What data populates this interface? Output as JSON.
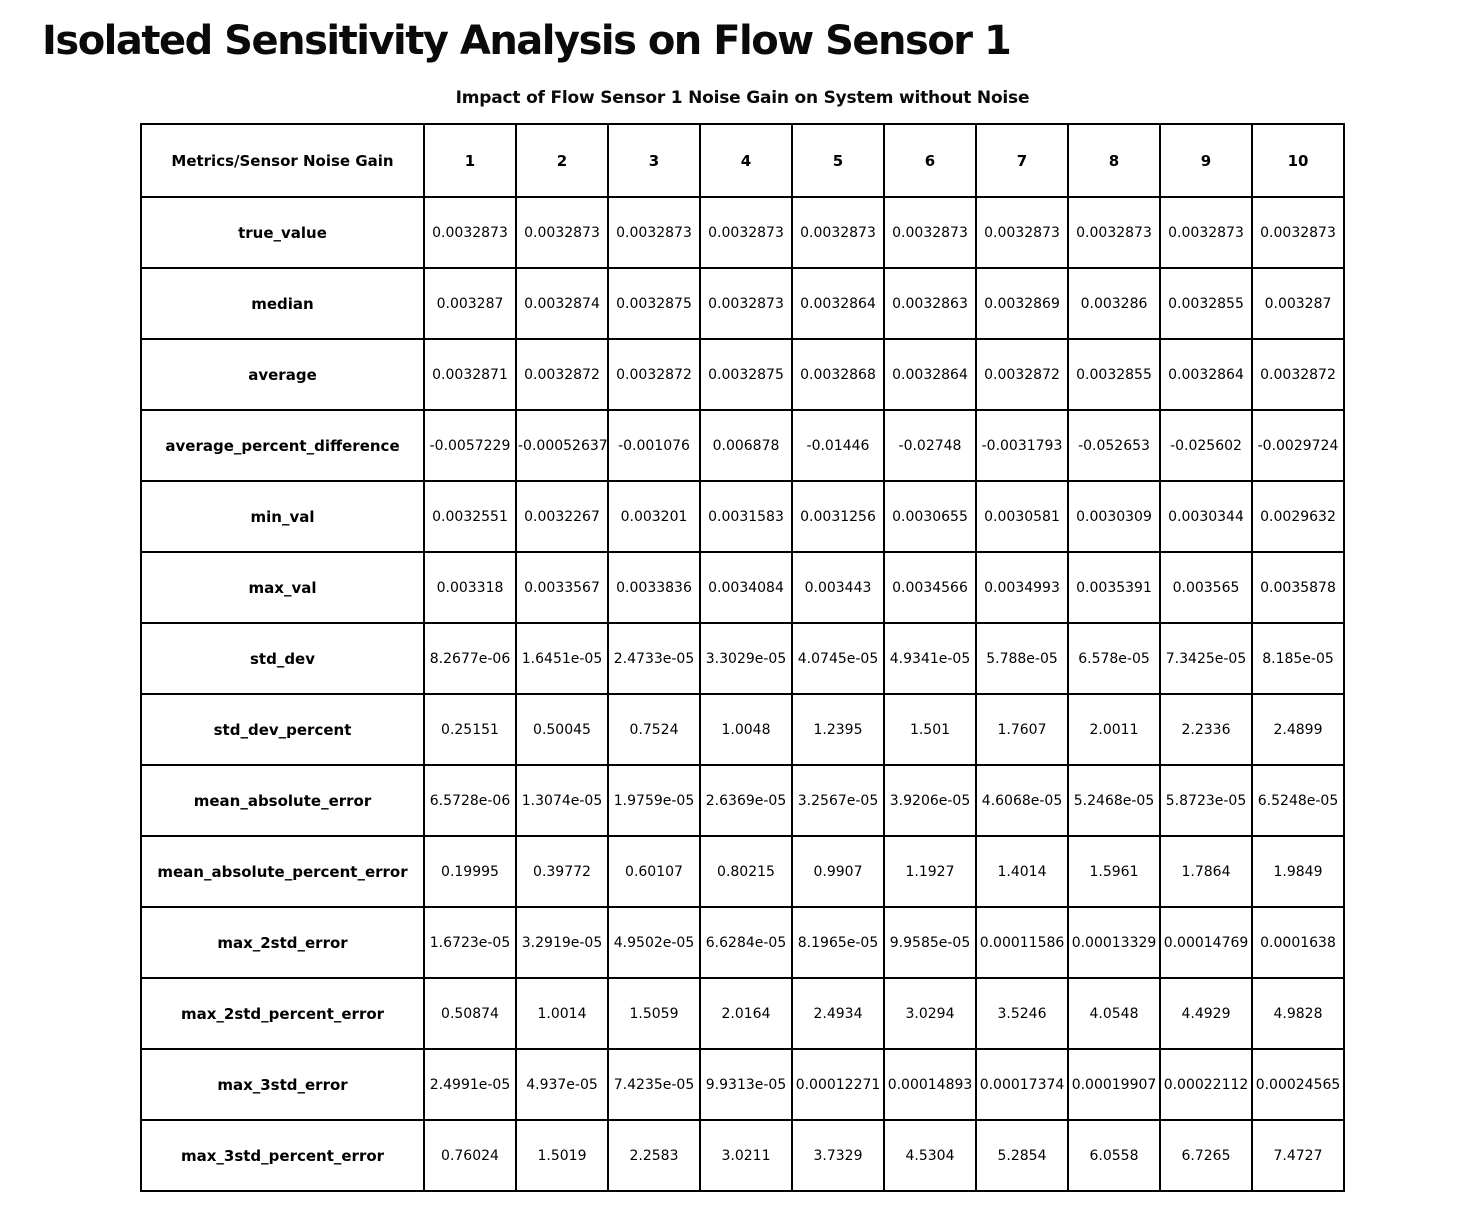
{
  "page": {
    "title": "Isolated Sensitivity Analysis on Flow Sensor 1",
    "subtitle": "Impact of Flow Sensor 1 Noise Gain on System without Noise"
  },
  "table": {
    "corner_label": "Metrics/Sensor Noise Gain",
    "columns": [
      "1",
      "2",
      "3",
      "4",
      "5",
      "6",
      "7",
      "8",
      "9",
      "10"
    ],
    "rows": [
      {
        "label": "true_value",
        "values": [
          "0.0032873",
          "0.0032873",
          "0.0032873",
          "0.0032873",
          "0.0032873",
          "0.0032873",
          "0.0032873",
          "0.0032873",
          "0.0032873",
          "0.0032873"
        ]
      },
      {
        "label": "median",
        "values": [
          "0.003287",
          "0.0032874",
          "0.0032875",
          "0.0032873",
          "0.0032864",
          "0.0032863",
          "0.0032869",
          "0.003286",
          "0.0032855",
          "0.003287"
        ]
      },
      {
        "label": "average",
        "values": [
          "0.0032871",
          "0.0032872",
          "0.0032872",
          "0.0032875",
          "0.0032868",
          "0.0032864",
          "0.0032872",
          "0.0032855",
          "0.0032864",
          "0.0032872"
        ]
      },
      {
        "label": "average_percent_difference",
        "values": [
          "-0.0057229",
          "-0.00052637",
          "-0.001076",
          "0.006878",
          "-0.01446",
          "-0.02748",
          "-0.0031793",
          "-0.052653",
          "-0.025602",
          "-0.0029724"
        ]
      },
      {
        "label": "min_val",
        "values": [
          "0.0032551",
          "0.0032267",
          "0.003201",
          "0.0031583",
          "0.0031256",
          "0.0030655",
          "0.0030581",
          "0.0030309",
          "0.0030344",
          "0.0029632"
        ]
      },
      {
        "label": "max_val",
        "values": [
          "0.003318",
          "0.0033567",
          "0.0033836",
          "0.0034084",
          "0.003443",
          "0.0034566",
          "0.0034993",
          "0.0035391",
          "0.003565",
          "0.0035878"
        ]
      },
      {
        "label": "std_dev",
        "values": [
          "8.2677e-06",
          "1.6451e-05",
          "2.4733e-05",
          "3.3029e-05",
          "4.0745e-05",
          "4.9341e-05",
          "5.788e-05",
          "6.578e-05",
          "7.3425e-05",
          "8.185e-05"
        ]
      },
      {
        "label": "std_dev_percent",
        "values": [
          "0.25151",
          "0.50045",
          "0.7524",
          "1.0048",
          "1.2395",
          "1.501",
          "1.7607",
          "2.0011",
          "2.2336",
          "2.4899"
        ]
      },
      {
        "label": "mean_absolute_error",
        "values": [
          "6.5728e-06",
          "1.3074e-05",
          "1.9759e-05",
          "2.6369e-05",
          "3.2567e-05",
          "3.9206e-05",
          "4.6068e-05",
          "5.2468e-05",
          "5.8723e-05",
          "6.5248e-05"
        ]
      },
      {
        "label": "mean_absolute_percent_error",
        "values": [
          "0.19995",
          "0.39772",
          "0.60107",
          "0.80215",
          "0.9907",
          "1.1927",
          "1.4014",
          "1.5961",
          "1.7864",
          "1.9849"
        ]
      },
      {
        "label": "max_2std_error",
        "values": [
          "1.6723e-05",
          "3.2919e-05",
          "4.9502e-05",
          "6.6284e-05",
          "8.1965e-05",
          "9.9585e-05",
          "0.00011586",
          "0.00013329",
          "0.00014769",
          "0.0001638"
        ]
      },
      {
        "label": "max_2std_percent_error",
        "values": [
          "0.50874",
          "1.0014",
          "1.5059",
          "2.0164",
          "2.4934",
          "3.0294",
          "3.5246",
          "4.0548",
          "4.4929",
          "4.9828"
        ]
      },
      {
        "label": "max_3std_error",
        "values": [
          "2.4991e-05",
          "4.937e-05",
          "7.4235e-05",
          "9.9313e-05",
          "0.00012271",
          "0.00014893",
          "0.00017374",
          "0.00019907",
          "0.00022112",
          "0.00024565"
        ]
      },
      {
        "label": "max_3std_percent_error",
        "values": [
          "0.76024",
          "1.5019",
          "2.2583",
          "3.0211",
          "3.7329",
          "4.5304",
          "5.2854",
          "6.0558",
          "6.7265",
          "7.4727"
        ]
      }
    ]
  }
}
